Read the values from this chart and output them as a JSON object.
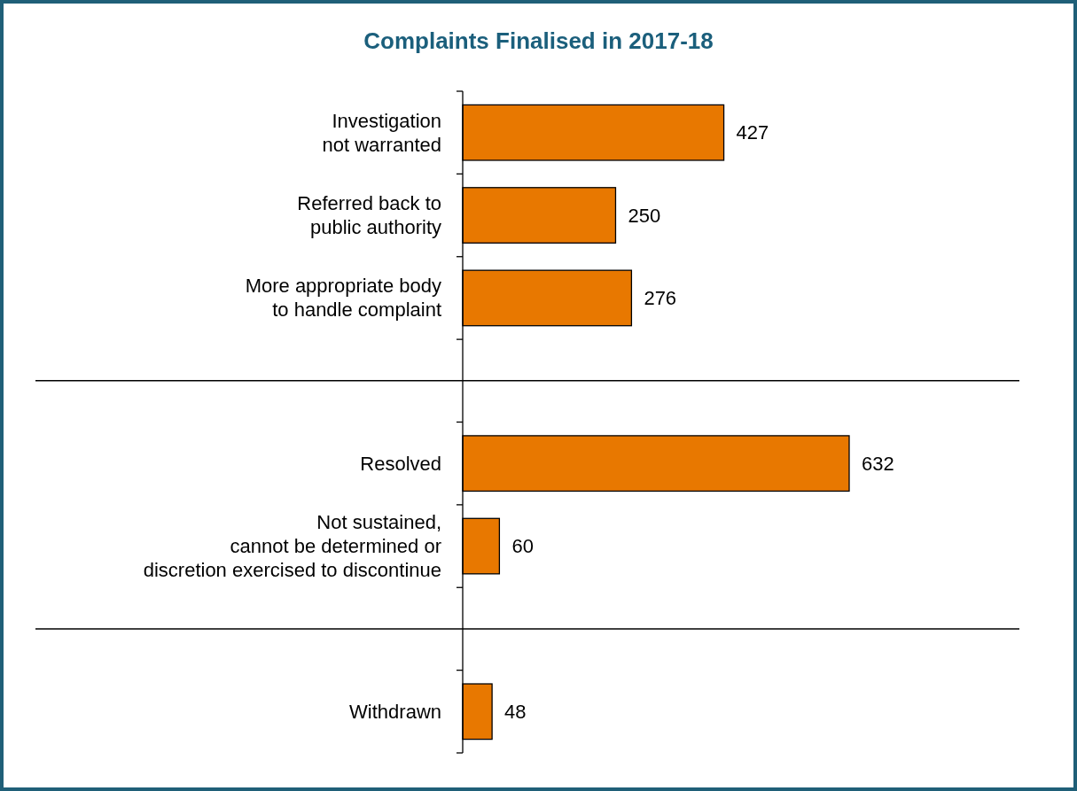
{
  "chart_data": {
    "type": "bar",
    "orientation": "horizontal",
    "title": "Complaints Finalised in 2017-18",
    "categories": [
      "Investigation\nnot warranted",
      "Referred back to\npublic authority",
      "More appropriate body\nto handle complaint",
      null,
      "Resolved",
      "Not sustained,\ncannot be determined or\ndiscretion exercised to discontinue",
      null,
      "Withdrawn"
    ],
    "values": [
      427,
      250,
      276,
      null,
      632,
      60,
      null,
      48
    ],
    "color": "#e87800",
    "data_labels": true
  }
}
